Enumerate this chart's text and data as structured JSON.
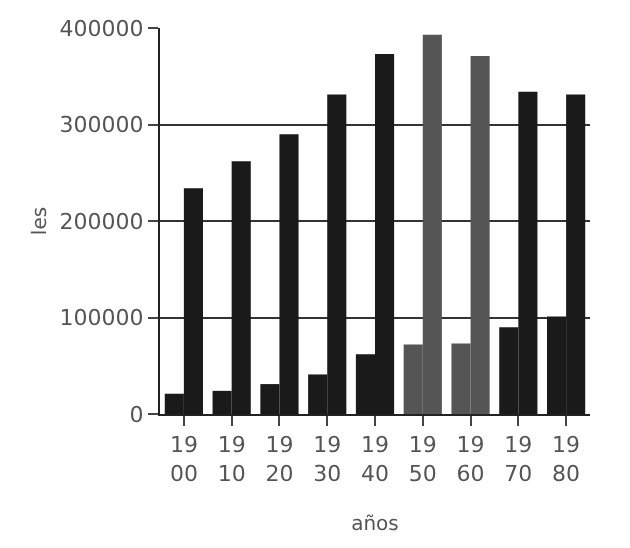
{
  "chart_data": {
    "type": "bar",
    "xlabel": "años",
    "ylabel": "les",
    "categories": [
      "19\n00",
      "19\n10",
      "19\n20",
      "19\n30",
      "19\n40",
      "19\n50",
      "19\n60",
      "19\n70",
      "19\n80"
    ],
    "series": [
      {
        "colors": [
          "#1a1a1a",
          "#1a1a1a",
          "#1a1a1a",
          "#1a1a1a",
          "#1a1a1a",
          "#555555",
          "#555555",
          "#1a1a1a",
          "#1a1a1a"
        ],
        "values": [
          21000,
          24000,
          31000,
          41000,
          62000,
          72000,
          73000,
          90000,
          101000
        ]
      },
      {
        "colors": [
          "#1a1a1a",
          "#1a1a1a",
          "#1a1a1a",
          "#1a1a1a",
          "#1a1a1a",
          "#555555",
          "#555555",
          "#1a1a1a",
          "#1a1a1a"
        ],
        "values": [
          234000,
          262000,
          290000,
          331000,
          373000,
          393000,
          371000,
          334000,
          331000
        ]
      }
    ],
    "ylim": [
      0,
      400000
    ],
    "yticks": [
      0,
      100000,
      200000,
      300000,
      400000
    ],
    "grid": "y",
    "legend": false
  }
}
